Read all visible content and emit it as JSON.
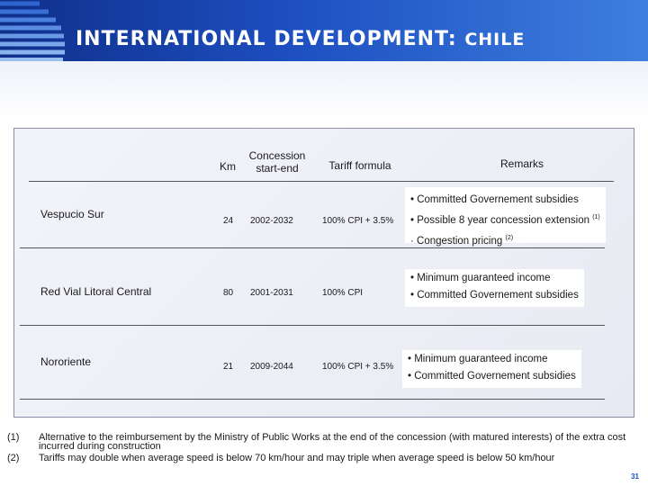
{
  "slide": {
    "title_main": "INTERNATIONAL DEVELOPMENT:",
    "title_country": "CHILE",
    "page_number": "31"
  },
  "table": {
    "headers": {
      "km": "Km",
      "concession": "Concession start-end",
      "tariff": "Tariff formula",
      "remarks": "Remarks"
    },
    "rows": [
      {
        "name": "Vespucio Sur",
        "km": "24",
        "period": "2002-2032",
        "tariff": "100% CPI + 3.5%",
        "remarks": [
          {
            "text": "• Committed Governement subsidies",
            "sup": ""
          },
          {
            "text": "• Possible 8 year concession extension ",
            "sup": "(1)"
          },
          {
            "text": "· Congestion pricing ",
            "sup": "(2)"
          }
        ]
      },
      {
        "name": "Red Vial Litoral Central",
        "km": "80",
        "period": "2001-2031",
        "tariff": "100% CPI",
        "remarks": [
          {
            "text": "• Minimum guaranteed income",
            "sup": ""
          },
          {
            "text": "• Committed Governement subsidies",
            "sup": ""
          }
        ]
      },
      {
        "name": "Nororiente",
        "km": "21",
        "period": "2009-2044",
        "tariff": "100% CPI + 3.5%",
        "remarks": [
          {
            "text": "• Minimum guaranteed income",
            "sup": ""
          },
          {
            "text": "• Committed Governement subsidies",
            "sup": ""
          }
        ]
      }
    ]
  },
  "footnotes": [
    {
      "num": "(1)",
      "text": "Alternative to the reimbursement by the Ministry of Public Works at the end of the concession (with matured interests) of the extra cost incurred during construction"
    },
    {
      "num": "(2)",
      "text": "Tariffs may double when average speed is below 70 km/hour and may triple when average speed is below 50 km/hour"
    }
  ]
}
